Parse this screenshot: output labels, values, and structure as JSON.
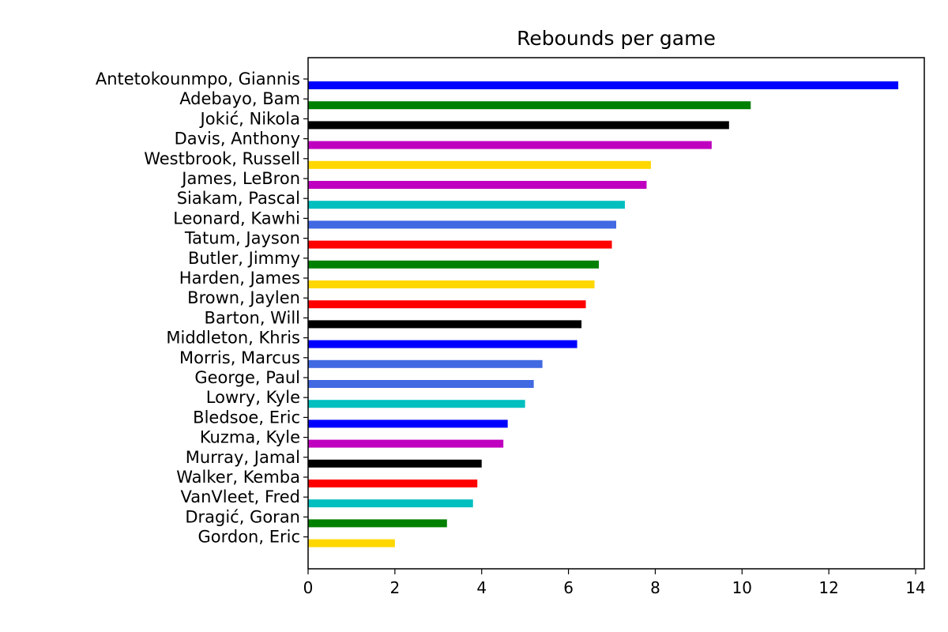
{
  "chart_data": {
    "type": "bar",
    "orientation": "horizontal",
    "title": "Rebounds per game",
    "xlabel": "",
    "ylabel": "",
    "xlim": [
      0,
      14.2
    ],
    "xticks": [
      0,
      2,
      4,
      6,
      8,
      10,
      12,
      14
    ],
    "grid": false,
    "legend": "none",
    "categories": [
      "Antetokounmpo, Giannis",
      "Adebayo, Bam",
      "Jokić, Nikola",
      "Davis, Anthony",
      "Westbrook, Russell",
      "James, LeBron",
      "Siakam, Pascal",
      "Leonard, Kawhi",
      "Tatum, Jayson",
      "Butler, Jimmy",
      "Harden, James",
      "Brown, Jaylen",
      "Barton, Will",
      "Middleton, Khris",
      "Morris, Marcus",
      "George, Paul",
      "Lowry, Kyle",
      "Bledsoe, Eric",
      "Kuzma, Kyle",
      "Murray, Jamal",
      "Walker, Kemba",
      "VanVleet, Fred",
      "Dragić, Goran",
      "Gordon, Eric"
    ],
    "values": [
      13.6,
      10.2,
      9.7,
      9.3,
      7.9,
      7.8,
      7.3,
      7.1,
      7.0,
      6.7,
      6.6,
      6.4,
      6.3,
      6.2,
      5.4,
      5.2,
      5.0,
      4.6,
      4.5,
      4.0,
      3.9,
      3.8,
      3.2,
      2.0
    ],
    "colors": [
      "#0000ff",
      "#008000",
      "#000000",
      "#bf00bf",
      "#ffd700",
      "#bf00bf",
      "#00bfbf",
      "#4169e1",
      "#ff0000",
      "#008000",
      "#ffd700",
      "#ff0000",
      "#000000",
      "#0000ff",
      "#4169e1",
      "#4169e1",
      "#00bfbf",
      "#0000ff",
      "#bf00bf",
      "#000000",
      "#ff0000",
      "#00bfbf",
      "#008000",
      "#ffd700"
    ]
  }
}
